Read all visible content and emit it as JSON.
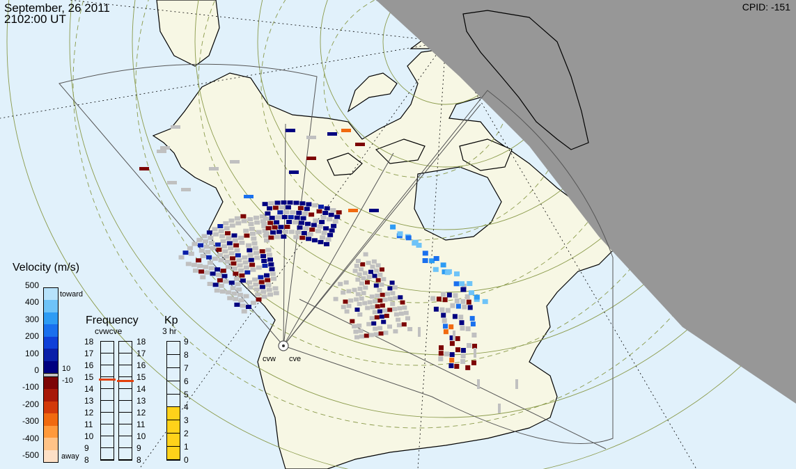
{
  "header": {
    "date": "September, 26 2011",
    "time": "2102:00 UT",
    "cpid": "CPID:  -151"
  },
  "stations": [
    {
      "code": "cvw"
    },
    {
      "code": "cve"
    }
  ],
  "velocity_scale": {
    "title": "Velocity (m/s)",
    "ticks": [
      "500",
      "400",
      "300",
      "200",
      "100",
      "0",
      "-100",
      "-200",
      "-300",
      "-400",
      "-500"
    ],
    "toward_label": "toward",
    "away_label": "away",
    "ground_scatter_upper": "10",
    "ground_scatter_lower": "-10",
    "colors": [
      "#fde0c6",
      "#ffc387",
      "#ff9a3c",
      "#f06a10",
      "#d23a0a",
      "#a81a08",
      "#7d0505",
      "#000080",
      "#0a1fa8",
      "#0f40d8",
      "#1a70ee",
      "#2e9cf4",
      "#6ec3f8",
      "#b6e2fb"
    ],
    "ground_scatter_color": "#c0c0c0"
  },
  "frequency_scale": {
    "title": "Frequency",
    "subtitle": "cvwcve",
    "ticks": [
      "18",
      "17",
      "16",
      "15",
      "14",
      "13",
      "12",
      "11",
      "10",
      "9",
      "8"
    ],
    "marker_cvw_mhz": 14.8,
    "marker_cve_mhz": 14.7
  },
  "kp_scale": {
    "title": "Kp",
    "subtitle": "3 hr",
    "ticks": [
      "9",
      "8",
      "7",
      "6",
      "5",
      "4",
      "3",
      "2",
      "1",
      "0"
    ],
    "value": 4,
    "bar_color": "#ffd21a"
  },
  "map_colors": {
    "ocean": "#e1f1fb",
    "land": "#f7f7e4",
    "night": "#979797",
    "graticule": "#8a9a4a"
  }
}
